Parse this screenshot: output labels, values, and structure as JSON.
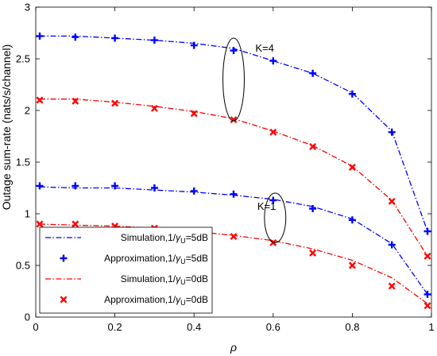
{
  "chart_data": {
    "type": "line",
    "xlabel": "ρ",
    "ylabel": "Outage sum-rate (nats/s/channel)",
    "xlim": [
      0,
      1
    ],
    "ylim": [
      0,
      3
    ],
    "xticks": [
      "0",
      "0.2",
      "0.4",
      "0.6",
      "0.8",
      "1"
    ],
    "yticks": [
      "0",
      "0.5",
      "1",
      "1.5",
      "2",
      "2.5",
      "3"
    ],
    "grid": false,
    "legend_position": "bottom-left",
    "colors": {
      "blue": "#0000ff",
      "red": "#ff0000"
    },
    "series": [
      {
        "name": "Simulation,1/γU=5dB (K=4)",
        "kind": "line",
        "color": "#0000ff",
        "x": [
          0.01,
          0.1,
          0.2,
          0.3,
          0.4,
          0.5,
          0.6,
          0.7,
          0.8,
          0.9,
          0.99
        ],
        "y": [
          2.72,
          2.72,
          2.7,
          2.68,
          2.65,
          2.6,
          2.48,
          2.36,
          2.17,
          1.8,
          0.83
        ]
      },
      {
        "name": "Approximation,1/γU=5dB (K=4)",
        "kind": "plus",
        "color": "#0000ff",
        "x": [
          0.01,
          0.1,
          0.2,
          0.3,
          0.4,
          0.5,
          0.6,
          0.7,
          0.8,
          0.9,
          0.99
        ],
        "y": [
          2.72,
          2.71,
          2.7,
          2.68,
          2.63,
          2.58,
          2.48,
          2.36,
          2.16,
          1.79,
          0.83
        ]
      },
      {
        "name": "Simulation,1/γU=0dB (K=4)",
        "kind": "line",
        "color": "#ff0000",
        "x": [
          0.01,
          0.1,
          0.2,
          0.3,
          0.4,
          0.5,
          0.6,
          0.7,
          0.8,
          0.9,
          0.99
        ],
        "y": [
          2.11,
          2.11,
          2.08,
          2.04,
          1.99,
          1.92,
          1.8,
          1.66,
          1.46,
          1.13,
          0.59
        ]
      },
      {
        "name": "Approximation,1/γU=0dB (K=4)",
        "kind": "cross",
        "color": "#ff0000",
        "x": [
          0.01,
          0.1,
          0.2,
          0.3,
          0.4,
          0.5,
          0.6,
          0.7,
          0.8,
          0.9,
          0.99
        ],
        "y": [
          2.1,
          2.09,
          2.07,
          2.02,
          1.97,
          1.91,
          1.79,
          1.65,
          1.45,
          1.12,
          0.59
        ]
      },
      {
        "name": "Simulation,1/γU=5dB (K=1)",
        "kind": "line",
        "color": "#0000ff",
        "x": [
          0.01,
          0.1,
          0.2,
          0.3,
          0.4,
          0.5,
          0.6,
          0.7,
          0.8,
          0.9,
          0.99
        ],
        "y": [
          1.26,
          1.25,
          1.25,
          1.23,
          1.21,
          1.18,
          1.14,
          1.07,
          0.95,
          0.71,
          0.22
        ]
      },
      {
        "name": "Approximation,1/γU=5dB (K=1)",
        "kind": "plus",
        "color": "#0000ff",
        "x": [
          0.01,
          0.1,
          0.2,
          0.3,
          0.4,
          0.5,
          0.6,
          0.7,
          0.8,
          0.9,
          0.99
        ],
        "y": [
          1.27,
          1.27,
          1.27,
          1.25,
          1.22,
          1.19,
          1.13,
          1.05,
          0.94,
          0.7,
          0.22
        ]
      },
      {
        "name": "Simulation,1/γU=0dB (K=1)",
        "kind": "line",
        "color": "#ff0000",
        "x": [
          0.01,
          0.1,
          0.2,
          0.3,
          0.4,
          0.5,
          0.6,
          0.7,
          0.8,
          0.9,
          0.99
        ],
        "y": [
          0.9,
          0.89,
          0.88,
          0.86,
          0.83,
          0.79,
          0.74,
          0.66,
          0.55,
          0.38,
          0.13
        ]
      },
      {
        "name": "Approximation,1/γU=0dB (K=1)",
        "kind": "cross",
        "color": "#ff0000",
        "x": [
          0.01,
          0.1,
          0.2,
          0.3,
          0.4,
          0.5,
          0.6,
          0.7,
          0.8,
          0.9,
          0.99
        ],
        "y": [
          0.9,
          0.9,
          0.88,
          0.86,
          0.82,
          0.78,
          0.72,
          0.62,
          0.5,
          0.3,
          0.11
        ]
      }
    ],
    "annotations": [
      {
        "text": "K=4",
        "x": 0.555,
        "y": 2.6
      },
      {
        "text": "K=1",
        "x": 0.56,
        "y": 1.07
      }
    ],
    "ellipses": [
      {
        "cx": 0.5,
        "cy": 2.3,
        "rx": 0.027,
        "ry": 0.4
      },
      {
        "cx": 0.605,
        "cy": 0.96,
        "rx": 0.027,
        "ry": 0.24
      }
    ],
    "legend": [
      {
        "kind": "line",
        "color": "#0000ff",
        "prefix": "Simulation,1/",
        "sym": "γ",
        "sub": "U",
        "suffix": "=5dB"
      },
      {
        "kind": "plus",
        "color": "#0000ff",
        "prefix": "Approximation,1/",
        "sym": "γ",
        "sub": "U",
        "suffix": "=5dB"
      },
      {
        "kind": "line",
        "color": "#ff0000",
        "prefix": "Simulation,1/",
        "sym": "γ",
        "sub": "U",
        "suffix": "=0dB"
      },
      {
        "kind": "cross",
        "color": "#ff0000",
        "prefix": "Approximation,1/",
        "sym": "γ",
        "sub": "U",
        "suffix": "=0dB"
      }
    ]
  }
}
